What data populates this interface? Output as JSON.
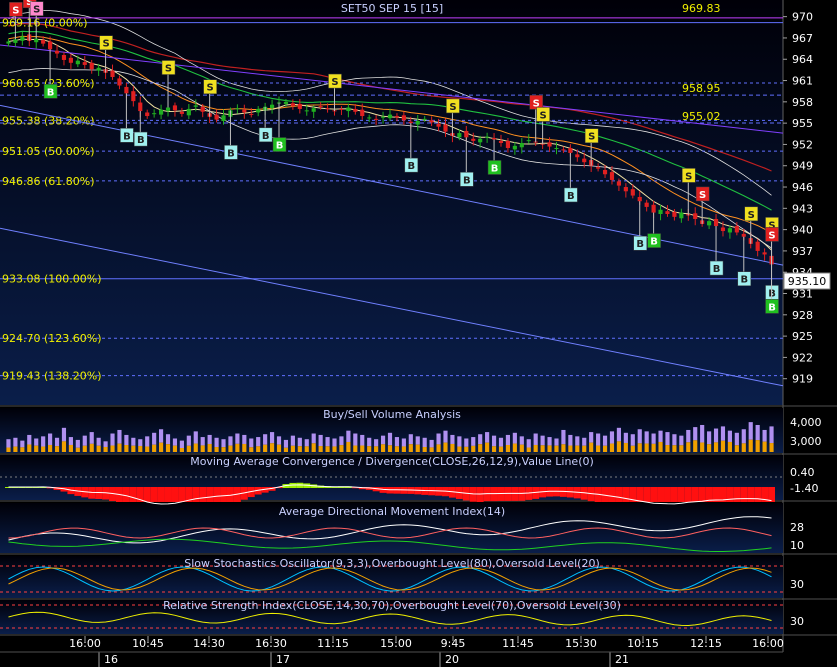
{
  "chart_data": {
    "type": "candlestick",
    "title": "SET50 SEP 15  [15]",
    "last_price_label": "935.10",
    "top_value_label": "969.83",
    "y_axis": {
      "min": 916.0,
      "max": 971.5,
      "ticks": [
        "970",
        "967",
        "964",
        "961",
        "958",
        "955",
        "952",
        "949",
        "946",
        "943",
        "940",
        "937",
        "934",
        "931",
        "928",
        "925",
        "922",
        "919"
      ]
    },
    "x_time_labels": [
      "16:00",
      "10:45",
      "14:30",
      "16:30",
      "11:15",
      "15:00",
      "9:45",
      "11:45",
      "15:30",
      "10:15",
      "12:15",
      "16:00"
    ],
    "x_day_labels": [
      "16",
      "17",
      "20",
      "21"
    ],
    "fib_levels": [
      {
        "label": "969.16 (0.00%)",
        "value": 969.16
      },
      {
        "label": "960.65 (23.60%)",
        "value": 960.65
      },
      {
        "label": "955.38 (38.20%)",
        "value": 955.38
      },
      {
        "label": "951.05 (50.00%)",
        "value": 951.05
      },
      {
        "label": "946.86 (61.80%)",
        "value": 946.86
      },
      {
        "label": "933.08 (100.00%)",
        "value": 933.08
      },
      {
        "label": "924.70 (123.60%)",
        "value": 924.7
      },
      {
        "label": "919.43 (138.20%)",
        "value": 919.43
      }
    ],
    "price_annotations": [
      {
        "label": "958.95",
        "value": 958.95
      },
      {
        "label": "955.02",
        "value": 955.02
      }
    ],
    "close_series": [
      966.5,
      966.8,
      967.2,
      966.6,
      966.9,
      966.2,
      965.4,
      964.8,
      963.9,
      963.5,
      963.8,
      963.2,
      962.6,
      962.8,
      962.1,
      961.5,
      960.3,
      959.2,
      958.1,
      956.7,
      956.0,
      956.4,
      956.9,
      957.2,
      956.8,
      956.3,
      957.0,
      957.5,
      956.6,
      955.9,
      955.5,
      956.1,
      956.8,
      957.1,
      956.5,
      956.2,
      957.0,
      957.3,
      957.6,
      957.9,
      958.0,
      957.4,
      957.0,
      956.8,
      957.1,
      957.3,
      957.0,
      956.7,
      956.9,
      957.2,
      956.6,
      956.0,
      955.8,
      955.5,
      955.9,
      956.2,
      955.8,
      955.4,
      955.0,
      955.3,
      955.6,
      955.1,
      954.5,
      953.8,
      953.2,
      953.6,
      953.0,
      952.5,
      952.8,
      953.1,
      952.7,
      952.2,
      951.5,
      951.8,
      952.2,
      952.6,
      952.3,
      952.0,
      951.7,
      951.5,
      951.2,
      950.8,
      950.2,
      949.5,
      949.0,
      948.6,
      947.8,
      947.0,
      946.2,
      945.4,
      944.8,
      944.0,
      943.2,
      942.4,
      942.8,
      942.2,
      941.8,
      942.4,
      942.0,
      941.5,
      940.8,
      941.2,
      940.5,
      939.8,
      940.2,
      939.6,
      939.0,
      938.0,
      937.0,
      936.5,
      935.1
    ],
    "buy_sell_volume": [
      1800,
      2000,
      1600,
      2400,
      1900,
      2200,
      2600,
      2000,
      3400,
      2100,
      1700,
      2300,
      2800,
      2000,
      1500,
      2600,
      3100,
      2400,
      2000,
      1800,
      2200,
      2700,
      3200,
      2500,
      1900,
      1600,
      2300,
      2900,
      2100,
      2400,
      2000,
      1800,
      2200,
      2600,
      2400,
      1900,
      2100,
      2500,
      2800,
      2200,
      1700,
      2300,
      2000,
      1800,
      2600,
      2400,
      2100,
      1900,
      2200,
      3000,
      2600,
      2400,
      2000,
      1800,
      2300,
      2700,
      2100,
      1900,
      2500,
      2200,
      2000,
      1700,
      2600,
      3000,
      2400,
      2200,
      1900,
      2100,
      2500,
      2800,
      2300,
      2000,
      2400,
      2700,
      2200,
      1800,
      2600,
      2300,
      2100,
      1900,
      3100,
      2400,
      2200,
      2000,
      2800,
      2600,
      2300,
      2900,
      3400,
      2700,
      2500,
      3200,
      2900,
      2600,
      3000,
      2800,
      2500,
      2300,
      3100,
      3500,
      3800,
      2900,
      3300,
      3600,
      3000,
      2700,
      3200,
      4200,
      3800,
      3100,
      3600
    ],
    "panels": [
      {
        "title": "Buy/Sell Volume Analysis",
        "tick_labels": [
          "4,000",
          "3,000"
        ]
      },
      {
        "title": "Moving Average Convergence / Divergence(CLOSE,26,12,9),Value Line(0)",
        "tick_labels": [
          "0.40",
          "-1.40"
        ]
      },
      {
        "title": "Average Directional Movement Index(14)",
        "tick_labels": [
          "28",
          "10"
        ]
      },
      {
        "title": "Slow Stochastics Oscillator(9,3,3),Overbought Level(80),Oversold Level(20)",
        "tick_labels": [
          "30"
        ]
      },
      {
        "title": "Relative Strength Index(CLOSE,14,30,70),Overbought Level(70),Oversold Level(30)",
        "tick_labels": [
          "30"
        ]
      }
    ],
    "signals": [
      {
        "type": "S",
        "color": "#e02020",
        "bar": 1
      },
      {
        "type": "S",
        "color": "#e02020",
        "bar": 3
      },
      {
        "type": "S",
        "color": "#ff88cc",
        "bar": 4
      },
      {
        "type": "B",
        "color": "#20c020",
        "bar": 6
      },
      {
        "type": "S",
        "color": "#f0e020",
        "bar": 14
      },
      {
        "type": "B",
        "color": "#a0f0f0",
        "bar": 17
      },
      {
        "type": "B",
        "color": "#a0f0f0",
        "bar": 19
      },
      {
        "type": "S",
        "color": "#f0e020",
        "bar": 23
      },
      {
        "type": "S",
        "color": "#f0e020",
        "bar": 29
      },
      {
        "type": "B",
        "color": "#a0f0f0",
        "bar": 32
      },
      {
        "type": "B",
        "color": "#a0f0f0",
        "bar": 37
      },
      {
        "type": "B",
        "color": "#20c020",
        "bar": 39
      },
      {
        "type": "S",
        "color": "#f0e020",
        "bar": 47
      },
      {
        "type": "B",
        "color": "#a0f0f0",
        "bar": 58
      },
      {
        "type": "S",
        "color": "#f0e020",
        "bar": 64
      },
      {
        "type": "B",
        "color": "#a0f0f0",
        "bar": 66
      },
      {
        "type": "B",
        "color": "#20c020",
        "bar": 70
      },
      {
        "type": "S",
        "color": "#e02020",
        "bar": 76
      },
      {
        "type": "S",
        "color": "#f0e020",
        "bar": 77
      },
      {
        "type": "B",
        "color": "#a0f0f0",
        "bar": 81
      },
      {
        "type": "S",
        "color": "#f0e020",
        "bar": 84
      },
      {
        "type": "B",
        "color": "#a0f0f0",
        "bar": 91
      },
      {
        "type": "B",
        "color": "#20c020",
        "bar": 93
      },
      {
        "type": "S",
        "color": "#f0e020",
        "bar": 98
      },
      {
        "type": "S",
        "color": "#e02020",
        "bar": 100
      },
      {
        "type": "B",
        "color": "#a0f0f0",
        "bar": 102
      },
      {
        "type": "S",
        "color": "#f0e020",
        "bar": 107
      },
      {
        "type": "S",
        "color": "#f0e020",
        "bar": 110
      },
      {
        "type": "S",
        "color": "#e02020",
        "bar": 112
      },
      {
        "type": "B",
        "color": "#a0f0f0",
        "bar": 106
      },
      {
        "type": "B",
        "color": "#a0f0f0",
        "bar": 110
      },
      {
        "type": "B",
        "color": "#20c020",
        "bar": 111
      }
    ],
    "colors": {
      "background_top": "#000008",
      "background_bottom": "#0a1e4a",
      "up_candle": "#20b020",
      "down_candle": "#e02020",
      "fib_line": "#6070ff",
      "fib_label": "#f0f000",
      "axis_text": "#ffffff",
      "panel_title": "#c8d0ff",
      "volume_buy": "#f0a000",
      "volume_sell": "#b090f0",
      "macd_hist_pos": "#a0f000",
      "macd_hist_neg": "#ff1010",
      "stoch_k": "#00c0ff",
      "stoch_d": "#f0a000",
      "rsi_line": "#f0f000",
      "ma_short": "#ff9020",
      "ma_mid": "#20c040",
      "ma_long": "#c02020",
      "ma_purple": "#a040ff",
      "bollinger": "#e0e0e0"
    },
    "grid": false
  }
}
